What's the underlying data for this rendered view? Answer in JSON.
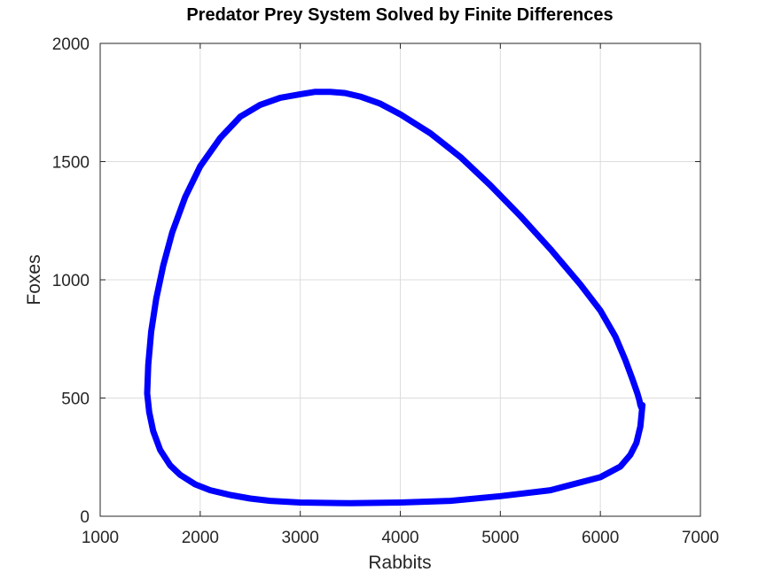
{
  "chart_data": {
    "type": "line",
    "title": "Predator Prey System Solved by Finite Differences",
    "xlabel": "Rabbits",
    "ylabel": "Foxes",
    "xlim": [
      1000,
      7000
    ],
    "ylim": [
      0,
      2000
    ],
    "xticks": [
      "1000",
      "2000",
      "3000",
      "4000",
      "5000",
      "6000",
      "7000"
    ],
    "yticks": [
      "0",
      "500",
      "1000",
      "1500",
      "2000"
    ],
    "grid": true,
    "line_color": "#0000ff",
    "series": [
      {
        "x": [
          6420,
          6400,
          6360,
          6300,
          6200,
          6000,
          5500,
          5000,
          4500,
          4000,
          3500,
          3000,
          2700,
          2500,
          2300,
          2100,
          1950,
          1800,
          1700,
          1600,
          1530,
          1490,
          1470,
          1480,
          1510,
          1560,
          1630,
          1720,
          1850,
          2000,
          2200,
          2400,
          2600,
          2800,
          3000,
          3150,
          3300,
          3450,
          3600,
          3800,
          4000,
          4300,
          4600,
          4900,
          5200,
          5500,
          5800,
          6000,
          6150,
          6250,
          6320,
          6370,
          6390,
          6400,
          6410,
          6420
        ],
        "y": [
          470,
          380,
          310,
          260,
          210,
          165,
          110,
          85,
          65,
          58,
          55,
          58,
          65,
          75,
          90,
          110,
          135,
          175,
          215,
          280,
          360,
          440,
          520,
          640,
          780,
          920,
          1060,
          1200,
          1350,
          1480,
          1600,
          1690,
          1740,
          1770,
          1785,
          1795,
          1795,
          1790,
          1775,
          1745,
          1700,
          1620,
          1520,
          1400,
          1270,
          1130,
          980,
          870,
          760,
          660,
          580,
          520,
          490,
          470,
          460,
          470
        ]
      }
    ]
  }
}
